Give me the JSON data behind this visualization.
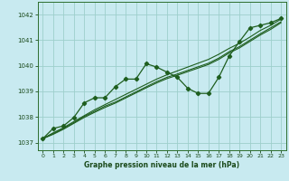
{
  "title": "Graphe pression niveau de la mer (hPa)",
  "bg_color": "#c8eaf0",
  "grid_color": "#9ecfcc",
  "line_color": "#1e5e1e",
  "marker_color": "#1e5e1e",
  "xlim": [
    -0.5,
    23.5
  ],
  "ylim": [
    1036.7,
    1042.5
  ],
  "yticks": [
    1037,
    1038,
    1039,
    1040,
    1041,
    1042
  ],
  "xticks": [
    0,
    1,
    2,
    3,
    4,
    5,
    6,
    7,
    8,
    9,
    10,
    11,
    12,
    13,
    14,
    15,
    16,
    17,
    18,
    19,
    20,
    21,
    22,
    23
  ],
  "series_main": {
    "x": [
      0,
      1,
      2,
      3,
      4,
      5,
      6,
      7,
      8,
      9,
      10,
      11,
      12,
      13,
      14,
      15,
      16,
      17,
      18,
      19,
      20,
      21,
      22,
      23
    ],
    "y": [
      1037.15,
      1037.55,
      1037.65,
      1037.98,
      1038.55,
      1038.75,
      1038.75,
      1039.18,
      1039.48,
      1039.48,
      1040.08,
      1039.95,
      1039.75,
      1039.55,
      1039.12,
      1038.92,
      1038.92,
      1039.55,
      1040.38,
      1040.95,
      1041.48,
      1041.58,
      1041.68,
      1041.85
    ]
  },
  "series2": {
    "x": [
      0,
      1,
      2,
      3,
      4,
      5,
      6,
      7,
      8,
      9,
      10,
      11,
      12,
      13,
      14,
      15,
      16,
      17,
      18,
      19,
      20,
      21,
      22,
      23
    ],
    "y": [
      1037.15,
      1037.38,
      1037.58,
      1037.82,
      1038.05,
      1038.28,
      1038.48,
      1038.68,
      1038.88,
      1039.08,
      1039.28,
      1039.48,
      1039.65,
      1039.8,
      1039.95,
      1040.1,
      1040.25,
      1040.45,
      1040.68,
      1040.88,
      1041.12,
      1041.38,
      1041.58,
      1041.82
    ]
  },
  "series3": {
    "x": [
      0,
      1,
      2,
      3,
      4,
      5,
      6,
      7,
      8,
      9,
      10,
      11,
      12,
      13,
      14,
      15,
      16,
      17,
      18,
      19,
      20,
      21,
      22,
      23
    ],
    "y": [
      1037.15,
      1037.35,
      1037.55,
      1037.78,
      1038.02,
      1038.22,
      1038.42,
      1038.58,
      1038.78,
      1038.98,
      1039.18,
      1039.38,
      1039.55,
      1039.68,
      1039.82,
      1039.96,
      1040.1,
      1040.3,
      1040.55,
      1040.75,
      1041.0,
      1041.25,
      1041.48,
      1041.72
    ]
  },
  "series4": {
    "x": [
      0,
      1,
      2,
      3,
      4,
      5,
      6,
      7,
      8,
      9,
      10,
      11,
      12,
      13,
      14,
      15,
      16,
      17,
      18,
      19,
      20,
      21,
      22,
      23
    ],
    "y": [
      1037.15,
      1037.32,
      1037.52,
      1037.75,
      1037.98,
      1038.18,
      1038.37,
      1038.54,
      1038.74,
      1038.94,
      1039.14,
      1039.33,
      1039.5,
      1039.63,
      1039.77,
      1039.91,
      1040.05,
      1040.25,
      1040.5,
      1040.7,
      1040.95,
      1041.2,
      1041.42,
      1041.68
    ]
  }
}
